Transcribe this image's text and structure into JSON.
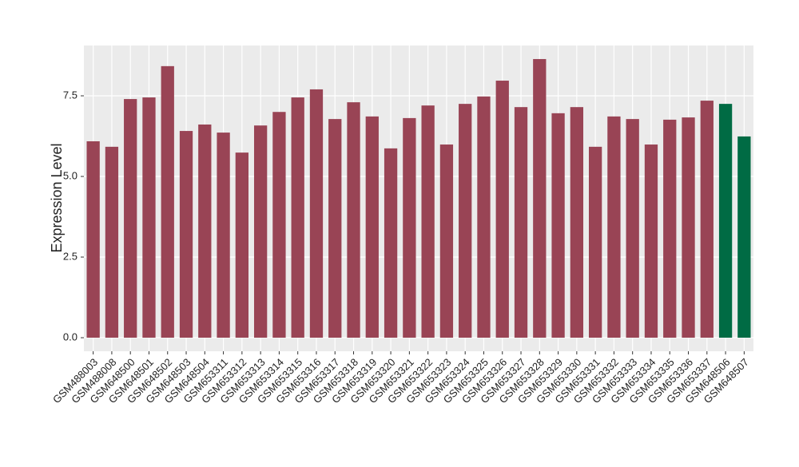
{
  "chart_data": {
    "type": "bar",
    "y_label": "Expression Level",
    "categories": [
      "GSM488003",
      "GSM488008",
      "GSM648500",
      "GSM648501",
      "GSM648502",
      "GSM648503",
      "GSM648504",
      "GSM653311",
      "GSM653312",
      "GSM653313",
      "GSM653314",
      "GSM653315",
      "GSM653316",
      "GSM653317",
      "GSM653318",
      "GSM653319",
      "GSM653320",
      "GSM653321",
      "GSM653322",
      "GSM653323",
      "GSM653324",
      "GSM653325",
      "GSM653326",
      "GSM653327",
      "GSM653328",
      "GSM653329",
      "GSM653330",
      "GSM653331",
      "GSM653332",
      "GSM653333",
      "GSM653334",
      "GSM653335",
      "GSM653336",
      "GSM653337",
      "GSM648506",
      "GSM648507"
    ],
    "values": [
      6.09,
      5.92,
      7.4,
      7.45,
      8.42,
      6.41,
      6.61,
      6.36,
      5.74,
      6.58,
      7.0,
      7.45,
      7.7,
      6.78,
      7.3,
      6.86,
      5.87,
      6.81,
      7.2,
      5.99,
      7.25,
      7.48,
      7.97,
      7.15,
      8.64,
      6.96,
      7.15,
      5.92,
      6.86,
      6.78,
      5.99,
      6.76,
      6.83,
      7.35,
      7.25,
      6.24
    ],
    "colors": [
      "#994455",
      "#994455",
      "#994455",
      "#994455",
      "#994455",
      "#994455",
      "#994455",
      "#994455",
      "#994455",
      "#994455",
      "#994455",
      "#994455",
      "#994455",
      "#994455",
      "#994455",
      "#994455",
      "#994455",
      "#994455",
      "#994455",
      "#994455",
      "#994455",
      "#994455",
      "#994455",
      "#994455",
      "#994455",
      "#994455",
      "#994455",
      "#994455",
      "#994455",
      "#994455",
      "#994455",
      "#994455",
      "#994455",
      "#994455",
      "#006b44",
      "#006b44"
    ],
    "ylim": [
      -0.42,
      9.06
    ],
    "yticks": [
      {
        "value": 0,
        "label": "0.0"
      },
      2.5,
      {
        "value": 5,
        "label": "5.0"
      },
      7.5
    ],
    "grid": true
  }
}
